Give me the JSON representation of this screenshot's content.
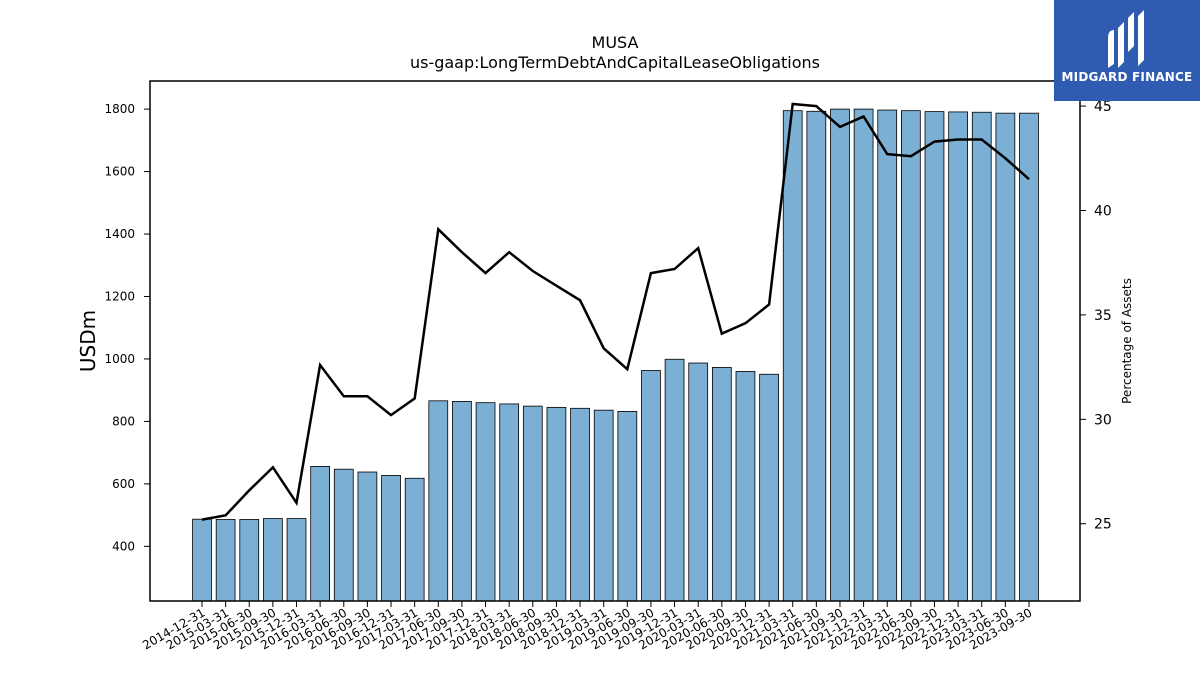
{
  "chart_data": {
    "type": "bar",
    "title": "MUSA",
    "subtitle": "us-gaap:LongTermDebtAndCapitalLeaseObligations",
    "ylabel": "USDm",
    "ylabel_right": "Percentage of Assets",
    "ylim": [
      225,
      1890
    ],
    "ylim_right": [
      21.3,
      46.2
    ],
    "yticks": [
      400,
      600,
      800,
      1000,
      1200,
      1400,
      1600,
      1800
    ],
    "yticks_right": [
      25,
      30,
      35,
      40,
      45
    ],
    "grid": false,
    "categories": [
      "2014-12-31",
      "2015-03-31",
      "2015-06-30",
      "2015-09-30",
      "2015-12-31",
      "2016-03-31",
      "2016-06-30",
      "2016-09-30",
      "2016-12-31",
      "2017-03-31",
      "2017-06-30",
      "2017-09-30",
      "2017-12-31",
      "2018-03-31",
      "2018-06-30",
      "2018-09-30",
      "2018-12-31",
      "2019-03-31",
      "2019-06-30",
      "2019-09-30",
      "2019-12-31",
      "2020-03-31",
      "2020-06-30",
      "2020-09-30",
      "2020-12-31",
      "2021-03-31",
      "2021-06-30",
      "2021-09-30",
      "2021-12-31",
      "2022-03-31",
      "2022-06-30",
      "2022-09-30",
      "2022-12-31",
      "2023-03-31",
      "2023-06-30",
      "2023-09-30"
    ],
    "series": [
      {
        "type": "bar",
        "color": "#7bafd4",
        "values": [
          487,
          486,
          486,
          489,
          489,
          656,
          647,
          638,
          627,
          618,
          866,
          864,
          860,
          856,
          849,
          845,
          842,
          836,
          832,
          963,
          999,
          987,
          973,
          960,
          951,
          1795,
          1793,
          1800,
          1800,
          1797,
          1795,
          1792,
          1791,
          1790,
          1787,
          1787
        ]
      },
      {
        "type": "line",
        "axis": "right",
        "color": "#000000",
        "values": [
          25.2,
          25.4,
          26.6,
          27.7,
          26.0,
          32.6,
          31.1,
          31.1,
          30.2,
          31.0,
          39.1,
          38.0,
          37.0,
          38.0,
          37.1,
          36.4,
          35.7,
          33.4,
          32.4,
          37.0,
          37.2,
          38.2,
          34.1,
          34.6,
          35.5,
          45.1,
          45.0,
          44.0,
          44.5,
          42.7,
          42.6,
          43.3,
          43.4,
          43.4,
          42.5,
          41.5
        ]
      }
    ]
  },
  "logo": {
    "text": "MIDGARD FINANCE"
  }
}
